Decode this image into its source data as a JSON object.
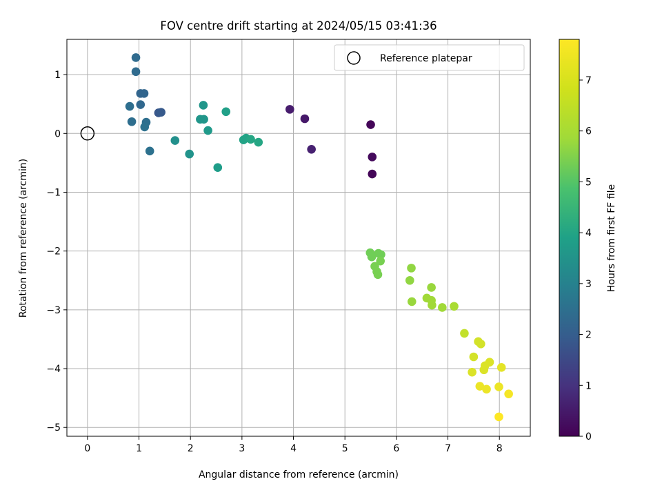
{
  "chart_data": {
    "type": "scatter",
    "title": "FOV centre drift starting at 2024/05/15 03:41:36",
    "xlabel": "Angular distance from reference (arcmin)",
    "ylabel": "Rotation from reference (arcmin)",
    "xlim": [
      -0.4,
      8.6
    ],
    "ylim": [
      -5.15,
      1.6
    ],
    "xticks": [
      0,
      1,
      2,
      3,
      4,
      5,
      6,
      7,
      8
    ],
    "yticks": [
      -5,
      -4,
      -3,
      -2,
      -1,
      0,
      1
    ],
    "xtick_labels": [
      "0",
      "1",
      "2",
      "3",
      "4",
      "5",
      "6",
      "7",
      "8"
    ],
    "ytick_labels": [
      "−5",
      "−4",
      "−3",
      "−2",
      "−1",
      "0",
      "1"
    ],
    "grid": true,
    "legend": {
      "placement": "top-right",
      "entries": [
        "Reference platepar"
      ]
    },
    "reference_point": {
      "x": 0,
      "y": 0,
      "marker": "open-circle"
    },
    "colorbar": {
      "label": "Hours from first FF file",
      "range": [
        0,
        7.8
      ],
      "ticks": [
        0,
        1,
        2,
        3,
        4,
        5,
        6,
        7
      ],
      "tick_labels": [
        "0",
        "1",
        "2",
        "3",
        "4",
        "5",
        "6",
        "7"
      ],
      "colormap": "viridis"
    },
    "series": [
      {
        "points": [
          {
            "x": 5.5,
            "y": 0.15,
            "t": 0.1
          },
          {
            "x": 5.53,
            "y": -0.4,
            "t": 0.2
          },
          {
            "x": 5.53,
            "y": -0.69,
            "t": 0.1
          },
          {
            "x": 3.93,
            "y": 0.41,
            "t": 0.6
          },
          {
            "x": 4.22,
            "y": 0.25,
            "t": 0.5
          },
          {
            "x": 4.35,
            "y": -0.27,
            "t": 0.7
          },
          {
            "x": 1.38,
            "y": 0.35,
            "t": 2.1
          },
          {
            "x": 1.43,
            "y": 0.36,
            "t": 2.2
          },
          {
            "x": 1.03,
            "y": 0.68,
            "t": 2.5
          },
          {
            "x": 1.1,
            "y": 0.68,
            "t": 2.5
          },
          {
            "x": 0.94,
            "y": 1.29,
            "t": 2.7
          },
          {
            "x": 0.94,
            "y": 1.05,
            "t": 2.7
          },
          {
            "x": 1.03,
            "y": 0.49,
            "t": 2.6
          },
          {
            "x": 0.82,
            "y": 0.46,
            "t": 2.8
          },
          {
            "x": 0.86,
            "y": 0.2,
            "t": 2.8
          },
          {
            "x": 1.14,
            "y": 0.19,
            "t": 2.8
          },
          {
            "x": 1.11,
            "y": 0.11,
            "t": 2.9
          },
          {
            "x": 1.21,
            "y": -0.3,
            "t": 2.9
          },
          {
            "x": 1.7,
            "y": -0.12,
            "t": 3.9
          },
          {
            "x": 1.98,
            "y": -0.35,
            "t": 4.0
          },
          {
            "x": 2.25,
            "y": 0.48,
            "t": 4.1
          },
          {
            "x": 2.19,
            "y": 0.24,
            "t": 4.1
          },
          {
            "x": 2.26,
            "y": 0.24,
            "t": 4.1
          },
          {
            "x": 2.34,
            "y": 0.05,
            "t": 4.2
          },
          {
            "x": 2.69,
            "y": 0.37,
            "t": 4.4
          },
          {
            "x": 2.53,
            "y": -0.58,
            "t": 4.3
          },
          {
            "x": 3.03,
            "y": -0.11,
            "t": 4.5
          },
          {
            "x": 3.08,
            "y": -0.08,
            "t": 4.5
          },
          {
            "x": 3.17,
            "y": -0.1,
            "t": 4.6
          },
          {
            "x": 3.32,
            "y": -0.15,
            "t": 4.6
          },
          {
            "x": 5.49,
            "y": -2.03,
            "t": 6.1
          },
          {
            "x": 5.52,
            "y": -2.1,
            "t": 6.1
          },
          {
            "x": 5.65,
            "y": -2.04,
            "t": 6.1
          },
          {
            "x": 5.7,
            "y": -2.06,
            "t": 6.1
          },
          {
            "x": 5.69,
            "y": -2.17,
            "t": 6.2
          },
          {
            "x": 5.58,
            "y": -2.26,
            "t": 6.2
          },
          {
            "x": 5.62,
            "y": -2.35,
            "t": 6.2
          },
          {
            "x": 5.64,
            "y": -2.4,
            "t": 6.2
          },
          {
            "x": 6.29,
            "y": -2.29,
            "t": 6.5
          },
          {
            "x": 6.26,
            "y": -2.5,
            "t": 6.5
          },
          {
            "x": 6.3,
            "y": -2.86,
            "t": 6.6
          },
          {
            "x": 6.68,
            "y": -2.62,
            "t": 6.6
          },
          {
            "x": 6.59,
            "y": -2.8,
            "t": 6.7
          },
          {
            "x": 6.68,
            "y": -2.84,
            "t": 6.7
          },
          {
            "x": 6.69,
            "y": -2.92,
            "t": 6.7
          },
          {
            "x": 6.89,
            "y": -2.96,
            "t": 6.7
          },
          {
            "x": 7.12,
            "y": -2.94,
            "t": 6.8
          },
          {
            "x": 7.32,
            "y": -3.4,
            "t": 7.1
          },
          {
            "x": 7.59,
            "y": -3.54,
            "t": 7.3
          },
          {
            "x": 7.64,
            "y": -3.58,
            "t": 7.3
          },
          {
            "x": 7.5,
            "y": -3.8,
            "t": 7.3
          },
          {
            "x": 7.72,
            "y": -3.95,
            "t": 7.4
          },
          {
            "x": 7.7,
            "y": -4.02,
            "t": 7.4
          },
          {
            "x": 7.81,
            "y": -3.89,
            "t": 7.4
          },
          {
            "x": 7.47,
            "y": -4.06,
            "t": 7.4
          },
          {
            "x": 8.04,
            "y": -3.98,
            "t": 7.5
          },
          {
            "x": 7.62,
            "y": -4.3,
            "t": 7.6
          },
          {
            "x": 7.75,
            "y": -4.35,
            "t": 7.6
          },
          {
            "x": 7.99,
            "y": -4.31,
            "t": 7.6
          },
          {
            "x": 8.18,
            "y": -4.43,
            "t": 7.7
          },
          {
            "x": 7.99,
            "y": -4.82,
            "t": 7.8
          }
        ]
      }
    ]
  }
}
